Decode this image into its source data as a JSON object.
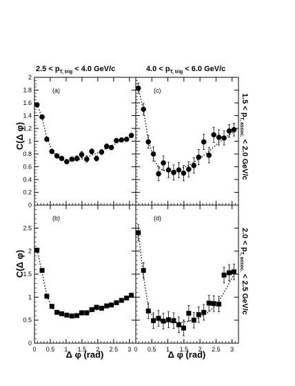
{
  "figure": {
    "top_titles": [
      {
        "pre": "2.5 < p",
        "sub": "T, trig",
        "post": " < 4.0 GeV/c"
      },
      {
        "pre": "4.0 < p",
        "sub": "T, trig",
        "post": " < 6.0 GeV/c"
      }
    ],
    "right_titles": [
      {
        "pre": "1.5 < p",
        "sub": "T, assoc.",
        "post": " < 2.0 GeV/c"
      },
      {
        "pre": "2.0 < p",
        "sub": "T, assoc.",
        "post": " < 2.5 GeV/c"
      }
    ],
    "ylabel": "C(Δ φ)",
    "xlabel": "Δ φ (rad)",
    "colors": {
      "marker": "#000000",
      "axis": "#000000",
      "background": "#ffffff"
    }
  },
  "chart_data": [
    {
      "type": "scatter",
      "panel_label": "(a)",
      "marker": "circle",
      "xlim": [
        0,
        3.2
      ],
      "ylim": [
        0,
        2.0
      ],
      "xticks": [
        "0",
        "0.5",
        "1",
        "1.5",
        "2",
        "2.5",
        "3"
      ],
      "yticks": [
        "0",
        "0.2",
        "0.4",
        "0.6",
        "0.8",
        "1",
        "1.2",
        "1.4",
        "1.6",
        "1.8",
        "2"
      ],
      "x": [
        0.08,
        0.24,
        0.39,
        0.55,
        0.71,
        0.86,
        1.02,
        1.18,
        1.34,
        1.49,
        1.65,
        1.81,
        1.96,
        2.12,
        2.28,
        2.43,
        2.59,
        2.75,
        2.91,
        3.06
      ],
      "y": [
        1.57,
        1.38,
        1.03,
        0.84,
        0.77,
        0.73,
        0.68,
        0.72,
        0.73,
        0.79,
        0.72,
        0.84,
        0.73,
        0.83,
        0.92,
        0.9,
        1.01,
        1.02,
        1.03,
        1.09
      ],
      "yerr": [
        0.02,
        0.02,
        0.02,
        0.02,
        0.03,
        0.03,
        0.03,
        0.03,
        0.04,
        0.05,
        0.05,
        0.04,
        0.04,
        0.04,
        0.04,
        0.03,
        0.03,
        0.03,
        0.03,
        0.03
      ],
      "fit_y": [
        1.58,
        1.37,
        1.06,
        0.86,
        0.76,
        0.71,
        0.69,
        0.69,
        0.7,
        0.72,
        0.75,
        0.78,
        0.81,
        0.85,
        0.89,
        0.93,
        0.97,
        1.01,
        1.04,
        1.07
      ]
    },
    {
      "type": "scatter",
      "panel_label": "(c)",
      "marker": "circle",
      "xlim": [
        0,
        3.2
      ],
      "ylim": [
        0,
        2.0
      ],
      "xticks": [
        "0",
        "0.5",
        "1",
        "1.5",
        "2",
        "2.5",
        "3"
      ],
      "yticks": [],
      "x": [
        0.08,
        0.24,
        0.39,
        0.55,
        0.71,
        0.86,
        1.02,
        1.18,
        1.34,
        1.49,
        1.65,
        1.81,
        1.96,
        2.12,
        2.28,
        2.43,
        2.59,
        2.75,
        2.91,
        3.06
      ],
      "y": [
        1.83,
        1.5,
        0.99,
        0.8,
        0.49,
        0.66,
        0.55,
        0.51,
        0.55,
        0.5,
        0.56,
        0.62,
        0.75,
        0.99,
        0.78,
        1.1,
        1.06,
        1.05,
        1.16,
        1.18
      ],
      "yerr": [
        0.08,
        0.09,
        0.1,
        0.11,
        0.11,
        0.11,
        0.12,
        0.12,
        0.12,
        0.12,
        0.12,
        0.12,
        0.12,
        0.12,
        0.12,
        0.12,
        0.12,
        0.11,
        0.1,
        0.1
      ],
      "fit_y": [
        1.83,
        1.48,
        1.02,
        0.73,
        0.59,
        0.54,
        0.53,
        0.54,
        0.56,
        0.59,
        0.62,
        0.67,
        0.72,
        0.78,
        0.84,
        0.91,
        0.98,
        1.04,
        1.1,
        1.15
      ]
    },
    {
      "type": "scatter",
      "panel_label": "(b)",
      "marker": "square",
      "xlim": [
        0,
        3.2
      ],
      "ylim": [
        0,
        3.0
      ],
      "xticks": [
        "0",
        "0.5",
        "1",
        "1.5",
        "2",
        "2.5",
        "3"
      ],
      "yticks": [
        "0",
        "0.5",
        "1",
        "1.5",
        "2",
        "2.5"
      ],
      "x": [
        0.08,
        0.24,
        0.39,
        0.55,
        0.71,
        0.86,
        1.02,
        1.18,
        1.34,
        1.49,
        1.65,
        1.81,
        1.96,
        2.12,
        2.28,
        2.43,
        2.59,
        2.75,
        2.91,
        3.06
      ],
      "y": [
        2.02,
        1.58,
        1.02,
        0.8,
        0.67,
        0.64,
        0.61,
        0.59,
        0.6,
        0.66,
        0.66,
        0.73,
        0.78,
        0.76,
        0.81,
        0.83,
        0.88,
        0.93,
        0.98,
        1.04
      ],
      "yerr": [
        0.03,
        0.03,
        0.03,
        0.03,
        0.03,
        0.03,
        0.03,
        0.03,
        0.04,
        0.05,
        0.05,
        0.04,
        0.04,
        0.04,
        0.03,
        0.03,
        0.03,
        0.03,
        0.03,
        0.03
      ],
      "fit_y": [
        2.02,
        1.55,
        1.03,
        0.78,
        0.66,
        0.61,
        0.59,
        0.59,
        0.6,
        0.62,
        0.65,
        0.69,
        0.72,
        0.76,
        0.8,
        0.84,
        0.88,
        0.92,
        0.97,
        1.01
      ]
    },
    {
      "type": "scatter",
      "panel_label": "(d)",
      "marker": "square",
      "xlim": [
        0,
        3.2
      ],
      "ylim": [
        0,
        3.0
      ],
      "xticks": [
        "0",
        "0.5",
        "1",
        "1.5",
        "2",
        "2.5",
        "3"
      ],
      "yticks": [],
      "x": [
        0.08,
        0.24,
        0.39,
        0.55,
        0.71,
        0.86,
        1.02,
        1.18,
        1.34,
        1.49,
        1.65,
        1.81,
        1.96,
        2.12,
        2.28,
        2.43,
        2.59,
        2.75,
        2.91,
        3.06
      ],
      "y": [
        2.4,
        1.58,
        0.7,
        0.49,
        0.54,
        0.48,
        0.51,
        0.49,
        0.4,
        0.33,
        0.65,
        0.5,
        0.62,
        0.67,
        0.87,
        0.86,
        0.85,
        1.48,
        1.53,
        1.55
      ],
      "yerr": [
        0.17,
        0.17,
        0.17,
        0.17,
        0.17,
        0.17,
        0.17,
        0.17,
        0.17,
        0.17,
        0.17,
        0.17,
        0.17,
        0.17,
        0.17,
        0.17,
        0.17,
        0.17,
        0.17,
        0.17
      ],
      "fit_y": [
        2.4,
        1.45,
        0.78,
        0.56,
        0.49,
        0.46,
        0.45,
        0.45,
        0.45,
        0.46,
        0.48,
        0.51,
        0.55,
        0.61,
        0.68,
        0.78,
        0.92,
        1.1,
        1.3,
        1.5
      ]
    }
  ]
}
